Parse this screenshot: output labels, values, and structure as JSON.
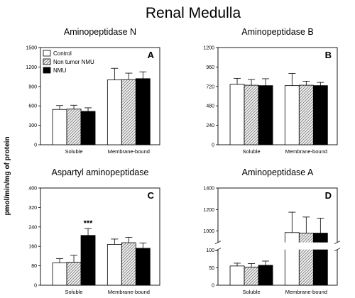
{
  "figure": {
    "title": "Renal Medulla",
    "ylabel": "pmol/min/mg of protein"
  },
  "legend": [
    "Control",
    "Non tumor NMU",
    "NMU"
  ],
  "chart_data": [
    {
      "type": "bar",
      "title": "Aminopeptidase N",
      "letter": "A",
      "categories": [
        "Soluble",
        "Membrane-bound"
      ],
      "series": [
        {
          "name": "Control",
          "values": [
            545,
            1000
          ],
          "errors": [
            60,
            180
          ]
        },
        {
          "name": "Non tumor NMU",
          "values": [
            550,
            1005
          ],
          "errors": [
            60,
            100
          ]
        },
        {
          "name": "NMU",
          "values": [
            515,
            1020
          ],
          "errors": [
            55,
            105
          ]
        }
      ],
      "ylim": [
        0,
        1500
      ],
      "yticks": [
        0,
        300,
        600,
        900,
        1200,
        1500
      ],
      "legend": "top-left"
    },
    {
      "type": "bar",
      "title": "Aminopeptidase B",
      "letter": "B",
      "categories": [
        "Soluble",
        "Membrane-bound"
      ],
      "series": [
        {
          "name": "Control",
          "values": [
            745,
            730
          ],
          "errors": [
            75,
            150
          ]
        },
        {
          "name": "Non tumor NMU",
          "values": [
            735,
            735
          ],
          "errors": [
            70,
            50
          ]
        },
        {
          "name": "NMU",
          "values": [
            730,
            730
          ],
          "errors": [
            85,
            40
          ]
        }
      ],
      "ylim": [
        0,
        1200
      ],
      "yticks": [
        0,
        240,
        480,
        720,
        960,
        1200
      ]
    },
    {
      "type": "bar",
      "title": "Aspartyl aminopeptidase",
      "letter": "C",
      "categories": [
        "Soluble",
        "Membrane-bound"
      ],
      "series": [
        {
          "name": "Control",
          "values": [
            92,
            168
          ],
          "errors": [
            18,
            22
          ]
        },
        {
          "name": "Non tumor NMU",
          "values": [
            95,
            175
          ],
          "errors": [
            28,
            22
          ]
        },
        {
          "name": "NMU",
          "values": [
            205,
            152
          ],
          "errors": [
            28,
            22
          ]
        }
      ],
      "ylim": [
        0,
        400
      ],
      "yticks": [
        0,
        80,
        160,
        240,
        320,
        400
      ],
      "annotation": {
        "text": "***",
        "category": "Soluble",
        "series": "NMU"
      }
    },
    {
      "type": "bar",
      "title": "Aminopeptidase A",
      "letter": "D",
      "categories": [
        "Soluble",
        "Membrane-bound"
      ],
      "series": [
        {
          "name": "Control",
          "values": [
            55,
            985
          ],
          "errors": [
            8,
            190
          ]
        },
        {
          "name": "Non tumor NMU",
          "values": [
            52,
            980
          ],
          "errors": [
            10,
            150
          ]
        },
        {
          "name": "NMU",
          "values": [
            57,
            980
          ],
          "errors": [
            12,
            140
          ]
        }
      ],
      "broken_axis": {
        "lower": [
          0,
          100
        ],
        "upper": [
          900,
          1400
        ]
      },
      "yticks_lower": [
        0,
        50,
        100
      ],
      "yticks_upper": [
        1000,
        1200,
        1400
      ]
    }
  ]
}
